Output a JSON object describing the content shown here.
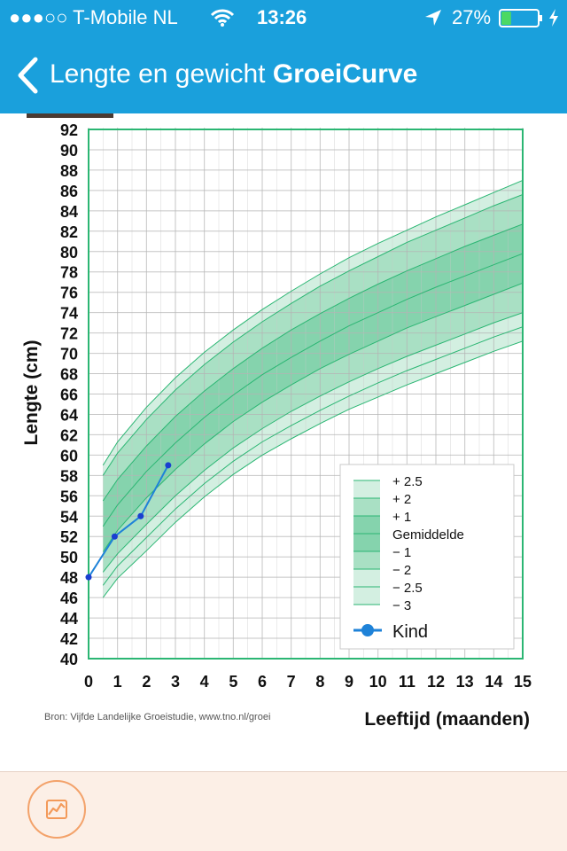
{
  "status_bar": {
    "carrier": "●●●○○ T-Mobile NL",
    "time": "13:26",
    "battery": "27%",
    "battery_level": 0.27,
    "icons": [
      "wifi-icon",
      "location-arrow-icon",
      "battery-icon",
      "charging-bolt-icon"
    ]
  },
  "nav": {
    "title_regular": "Lengte en gewicht",
    "title_bold": "GroeiCurve",
    "back_icon": "chevron-left-icon"
  },
  "colors": {
    "accent": "#1aa0dc",
    "grid_frame": "#2bb673",
    "band_outer": "#d3efe1",
    "band_mid": "#a9e0c4",
    "band_inner": "#85d3ad",
    "child_line": "#1e82d8",
    "bottom_bar": "#fcefe6",
    "tab_ring": "#f3a26a"
  },
  "chart_data": {
    "type": "line",
    "xlabel": "Leeftijd (maanden)",
    "ylabel": "Lengte (cm)",
    "xlim": [
      0,
      15
    ],
    "ylim": [
      40,
      92
    ],
    "x_ticks": [
      "0",
      "1",
      "2",
      "3",
      "4",
      "5",
      "6",
      "7",
      "8",
      "9",
      "10",
      "11",
      "12",
      "13",
      "14",
      "15"
    ],
    "y_ticks": [
      "40",
      "42",
      "44",
      "46",
      "48",
      "50",
      "52",
      "54",
      "56",
      "58",
      "60",
      "62",
      "64",
      "66",
      "68",
      "70",
      "72",
      "74",
      "76",
      "78",
      "80",
      "82",
      "84",
      "86",
      "88",
      "90",
      "92"
    ],
    "grid": true,
    "source": "Bron: Vijfde Landelijke Groeistudie, www.tno.nl/groei",
    "curve_x": [
      0.5,
      1,
      2,
      3,
      4,
      5,
      6,
      7,
      8,
      9,
      10,
      11,
      12,
      13,
      14,
      15
    ],
    "series": [
      {
        "name": "+ 2.5",
        "values": [
          59,
          61.3,
          64.7,
          67.6,
          70.1,
          72.3,
          74.3,
          76.1,
          77.8,
          79.4,
          80.8,
          82.1,
          83.4,
          84.6,
          85.8,
          87
        ]
      },
      {
        "name": "+ 2",
        "values": [
          58,
          60.2,
          63.5,
          66.4,
          68.9,
          71.1,
          73.1,
          74.9,
          76.6,
          78.1,
          79.5,
          80.9,
          82.1,
          83.3,
          84.5,
          85.6
        ]
      },
      {
        "name": "+ 1",
        "values": [
          55.5,
          57.6,
          60.9,
          63.8,
          66.3,
          68.5,
          70.5,
          72.3,
          73.9,
          75.4,
          76.8,
          78.1,
          79.3,
          80.5,
          81.6,
          82.7
        ]
      },
      {
        "name": "Gemiddelde",
        "values": [
          53,
          55.1,
          58.4,
          61.2,
          63.7,
          65.9,
          67.9,
          69.6,
          71.2,
          72.7,
          74,
          75.3,
          76.5,
          77.6,
          78.7,
          79.8
        ]
      },
      {
        "name": "− 1",
        "values": [
          50.5,
          52.6,
          55.8,
          58.6,
          61.1,
          63.3,
          65.2,
          66.9,
          68.5,
          69.9,
          71.2,
          72.5,
          73.6,
          74.7,
          75.8,
          76.9
        ]
      },
      {
        "name": "− 2",
        "values": [
          48.5,
          50.3,
          53.2,
          56,
          58.5,
          60.7,
          62.6,
          64.3,
          65.8,
          67.2,
          68.5,
          69.7,
          70.8,
          71.9,
          73,
          74
        ]
      },
      {
        "name": "− 2.5",
        "values": [
          47.2,
          49.1,
          51.9,
          54.7,
          57.2,
          59.4,
          61.3,
          62.9,
          64.4,
          65.8,
          67.1,
          68.3,
          69.4,
          70.5,
          71.6,
          72.6
        ]
      },
      {
        "name": "− 3",
        "values": [
          46,
          47.9,
          50.6,
          53.4,
          55.9,
          58.1,
          60,
          61.6,
          63.1,
          64.5,
          65.7,
          66.9,
          68,
          69.1,
          70.2,
          71.2
        ]
      }
    ],
    "child": {
      "name": "Kind",
      "x": [
        0,
        0.9,
        1.8,
        2.75
      ],
      "y": [
        48,
        52,
        54,
        59
      ]
    },
    "legend": {
      "placement": "bottom-right",
      "items": [
        "+ 2.5",
        "+ 2",
        "+ 1",
        "Gemiddelde",
        "− 1",
        "− 2",
        "− 2.5",
        "− 3"
      ],
      "kind_label": "Kind"
    }
  },
  "bottom_bar": {
    "tab_icon": "chart-line-icon"
  }
}
